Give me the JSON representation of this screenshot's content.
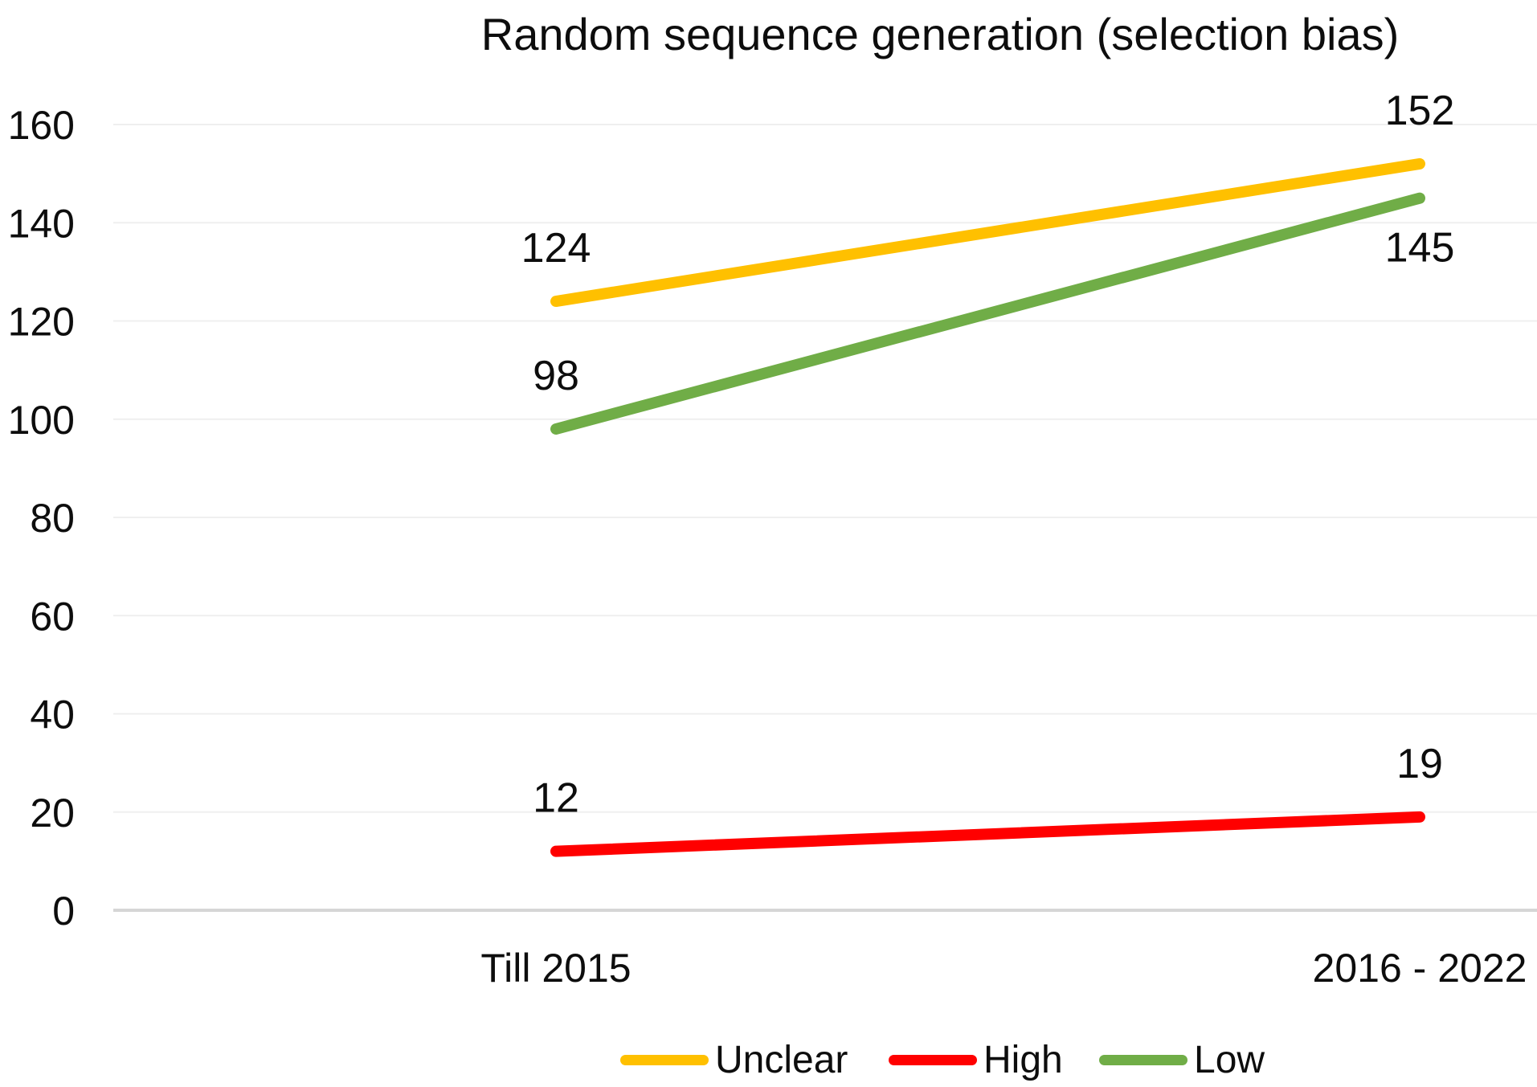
{
  "chart_data": {
    "type": "line",
    "title": "Random sequence generation (selection bias)",
    "categories": [
      "Till 2015",
      "2016 - 2022"
    ],
    "series": [
      {
        "name": "Unclear",
        "color": "#FFC000",
        "values": [
          124,
          152
        ]
      },
      {
        "name": "High",
        "color": "#FF0000",
        "values": [
          12,
          19
        ]
      },
      {
        "name": "Low",
        "color": "#70AD47",
        "values": [
          98,
          145
        ]
      }
    ],
    "data_labels": {
      "Unclear": [
        "124",
        "152"
      ],
      "High": [
        "12",
        "19"
      ],
      "Low": [
        "98",
        "145"
      ]
    },
    "y_axis": {
      "min": 0,
      "max": 160,
      "step": 20,
      "tick_labels": [
        "0",
        "20",
        "40",
        "60",
        "80",
        "100",
        "120",
        "140",
        "160"
      ]
    },
    "x_axis": {
      "tick_labels": [
        "Till 2015",
        "2016 - 2022"
      ]
    },
    "legend": {
      "position": "bottom",
      "entries": [
        "Unclear",
        "High",
        "Low"
      ]
    },
    "grid": true,
    "colors": {
      "gridline": "#EFEFEF",
      "axis_line": "#D6D6D6",
      "text": "#0D0D0D",
      "background": "#FFFFFF"
    }
  }
}
